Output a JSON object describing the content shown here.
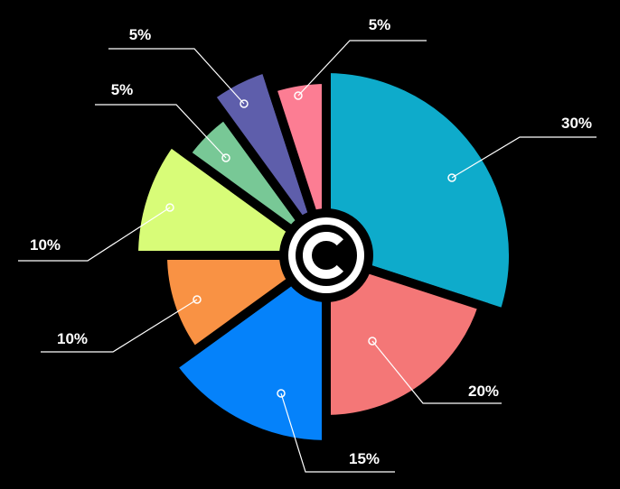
{
  "chart_data": {
    "type": "pie",
    "title": "",
    "start_angle": "top",
    "direction": "clockwise",
    "legend": "none",
    "slices": [
      {
        "label": "30%",
        "value": 30,
        "color": "#0eabcb"
      },
      {
        "label": "20%",
        "value": 20,
        "color": "#f47777"
      },
      {
        "label": "15%",
        "value": 15,
        "color": "#0582fa"
      },
      {
        "label": "10%",
        "value": 10,
        "color": "#f99244"
      },
      {
        "label": "10%",
        "value": 10,
        "color": "#d8fc78"
      },
      {
        "label": "5%",
        "value": 5,
        "color": "#78c896"
      },
      {
        "label": "5%",
        "value": 5,
        "color": "#5e5eab"
      },
      {
        "label": "5%",
        "value": 5,
        "color": "#fc7d93"
      }
    ],
    "center_icon": "copyright-c-logo"
  }
}
